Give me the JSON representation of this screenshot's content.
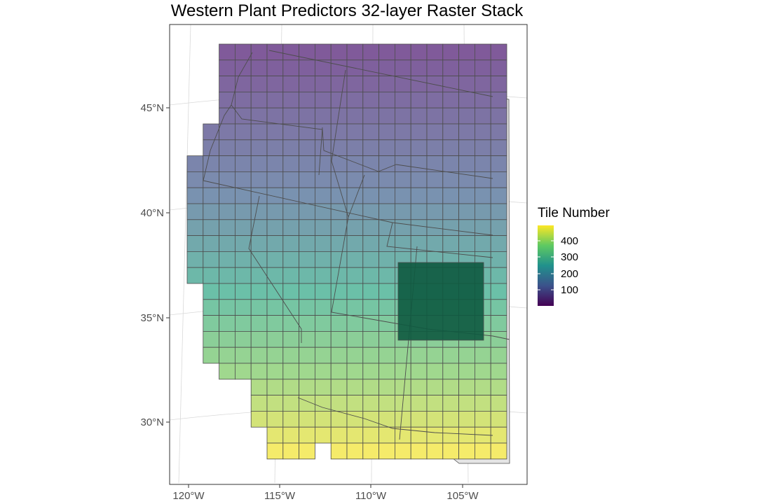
{
  "title": "Western Plant Predictors 32-layer Raster Stack",
  "axes": {
    "x_ticks": [
      "120°W",
      "115°W",
      "110°W",
      "105°W"
    ],
    "y_ticks": [
      "45°N",
      "40°N",
      "35°N",
      "30°N"
    ]
  },
  "legend": {
    "title": "Tile Number",
    "labels": [
      "400",
      "300",
      "200",
      "100"
    ],
    "colormap": "viridis",
    "range": [
      1,
      480
    ]
  },
  "colors": {
    "grid_line": "#d9d9d9",
    "tile_border": "#4d4d4d",
    "highlight": "#0e5a40",
    "outside_region": "#e5e5e5"
  }
}
